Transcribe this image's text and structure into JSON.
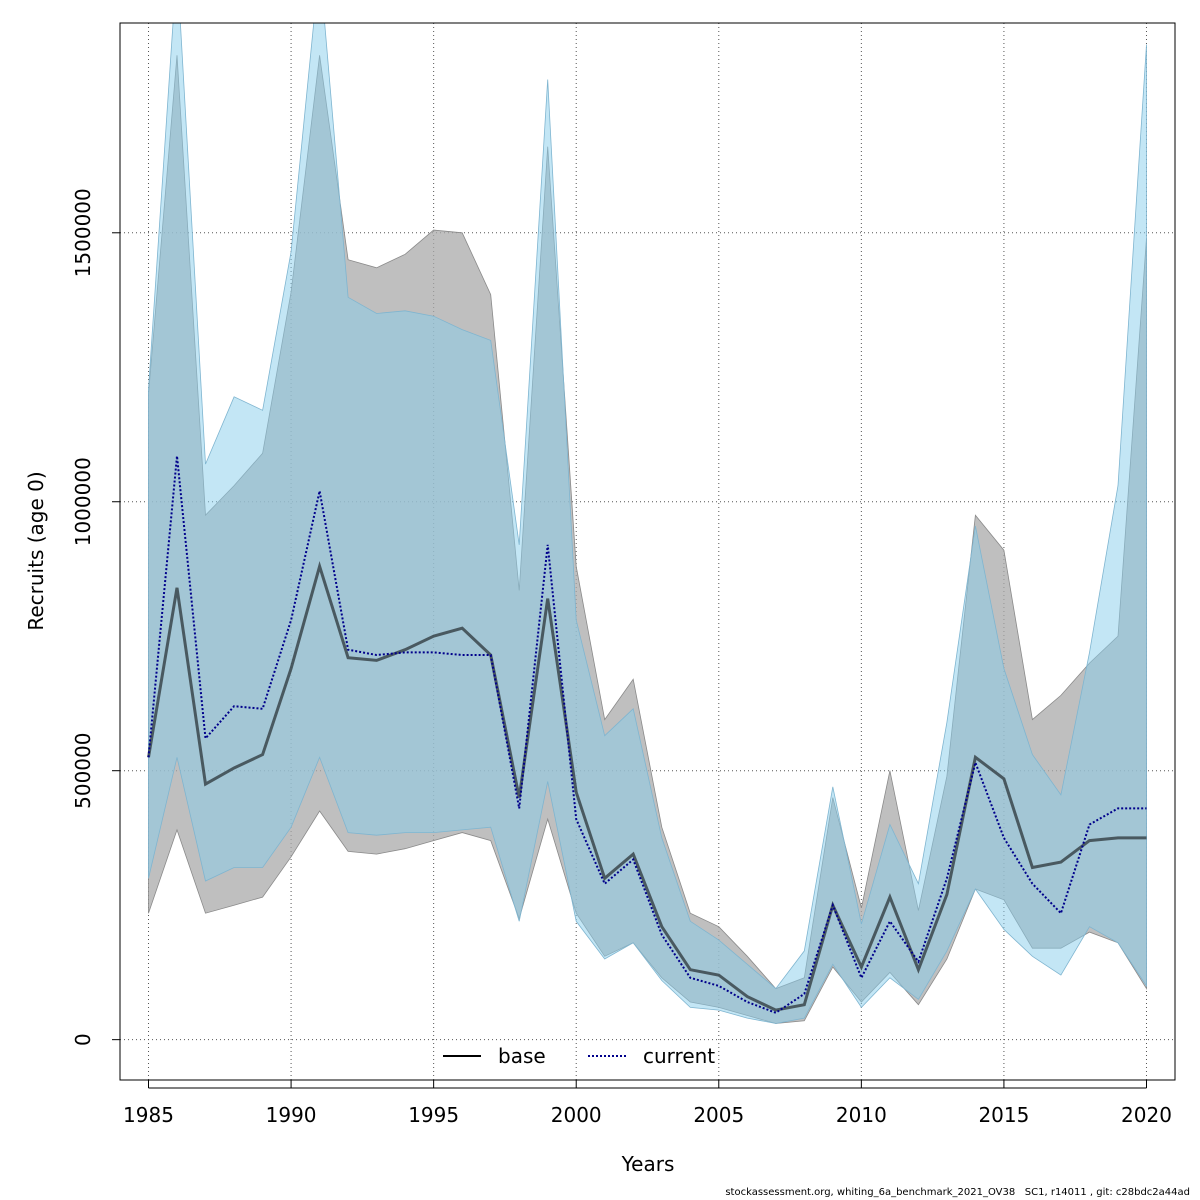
{
  "chart_data": {
    "type": "line",
    "xlabel": "Years",
    "ylabel": "Recruits (age 0)",
    "xlim": [
      1984,
      2021
    ],
    "ylim": [
      -75000,
      1890000
    ],
    "x_ticks": [
      1985,
      1990,
      1995,
      2000,
      2005,
      2010,
      2015,
      2020
    ],
    "y_ticks": [
      0,
      500000,
      1000000,
      1500000
    ],
    "grid": true,
    "legend_position": "bottom-center",
    "x": [
      1985,
      1986,
      1987,
      1988,
      1989,
      1990,
      1991,
      1992,
      1993,
      1994,
      1995,
      1996,
      1997,
      1998,
      1999,
      2000,
      2001,
      2002,
      2003,
      2004,
      2005,
      2006,
      2007,
      2008,
      2009,
      2010,
      2011,
      2012,
      2013,
      2014,
      2015,
      2016,
      2017,
      2018,
      2019,
      2020
    ],
    "series": [
      {
        "name": "base",
        "line_style": "solid",
        "line_color": "#000000",
        "band_color": "#a9a9a9",
        "values": [
          525000,
          840000,
          475000,
          505000,
          530000,
          690000,
          880000,
          710000,
          705000,
          725000,
          750000,
          765000,
          715000,
          450000,
          820000,
          460000,
          300000,
          345000,
          210000,
          130000,
          120000,
          80000,
          55000,
          65000,
          250000,
          135000,
          265000,
          130000,
          270000,
          525000,
          485000,
          320000,
          330000,
          370000,
          375000,
          375000
        ],
        "upper": [
          1200000,
          1830000,
          975000,
          1030000,
          1090000,
          1390000,
          1830000,
          1450000,
          1435000,
          1460000,
          1505000,
          1500000,
          1385000,
          835000,
          1660000,
          880000,
          595000,
          670000,
          395000,
          235000,
          210000,
          155000,
          95000,
          115000,
          450000,
          245000,
          500000,
          240000,
          490000,
          975000,
          910000,
          595000,
          640000,
          700000,
          750000,
          1490000
        ],
        "lower": [
          235000,
          390000,
          235000,
          250000,
          265000,
          340000,
          425000,
          350000,
          345000,
          355000,
          370000,
          385000,
          370000,
          225000,
          410000,
          235000,
          155000,
          180000,
          115000,
          70000,
          60000,
          45000,
          30000,
          35000,
          135000,
          70000,
          125000,
          65000,
          150000,
          280000,
          260000,
          170000,
          170000,
          200000,
          180000,
          95000
        ]
      },
      {
        "name": "current",
        "line_style": "dotted",
        "line_color": "#00008b",
        "band_color": "#87ceeb",
        "values": [
          525000,
          1085000,
          560000,
          620000,
          615000,
          780000,
          1020000,
          725000,
          715000,
          720000,
          720000,
          715000,
          715000,
          430000,
          920000,
          410000,
          290000,
          335000,
          195000,
          115000,
          100000,
          70000,
          50000,
          85000,
          250000,
          115000,
          220000,
          145000,
          300000,
          515000,
          375000,
          290000,
          235000,
          400000,
          430000,
          430000
        ],
        "upper": [
          1210000,
          2000000,
          1070000,
          1195000,
          1170000,
          1465000,
          2000000,
          1380000,
          1350000,
          1355000,
          1345000,
          1320000,
          1300000,
          920000,
          1785000,
          780000,
          565000,
          615000,
          375000,
          220000,
          185000,
          140000,
          95000,
          165000,
          470000,
          215000,
          400000,
          290000,
          590000,
          955000,
          690000,
          530000,
          455000,
          720000,
          1030000,
          1850000
        ],
        "lower": [
          300000,
          525000,
          295000,
          320000,
          320000,
          395000,
          525000,
          385000,
          380000,
          385000,
          385000,
          390000,
          395000,
          220000,
          480000,
          220000,
          150000,
          180000,
          110000,
          60000,
          55000,
          40000,
          30000,
          40000,
          140000,
          60000,
          115000,
          75000,
          165000,
          280000,
          205000,
          155000,
          120000,
          210000,
          180000,
          100000
        ]
      }
    ]
  },
  "footer": {
    "text": "stockassessment.org, whiting_6a_benchmark_2021_OV38   SC1, r14011 , git: c28bdc2a44ad"
  }
}
